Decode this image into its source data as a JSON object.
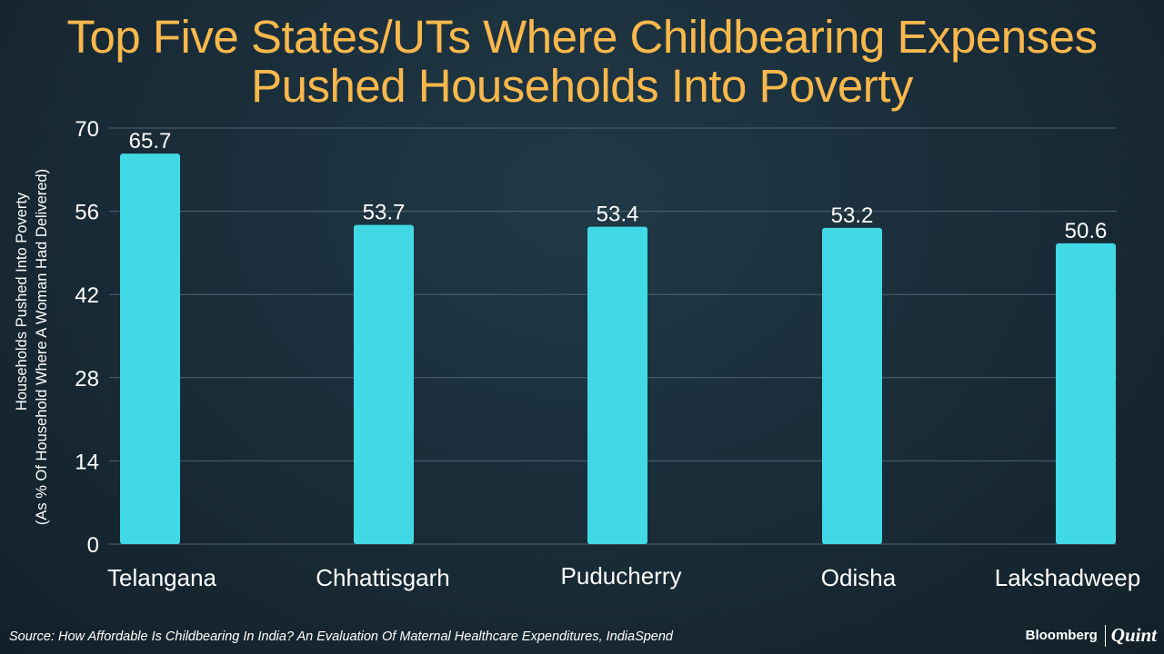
{
  "title_line1": "Top Five States/UTs Where Childbearing Expenses",
  "title_line2": "Pushed Households Into Poverty",
  "chart_data": {
    "type": "bar",
    "title": "Top Five States/UTs Where Childbearing Expenses Pushed Households Into Poverty",
    "categories": [
      "Telangana",
      "Chhattisgarh",
      "Puducherry",
      "Odisha",
      "Lakshadweep"
    ],
    "values": [
      65.7,
      53.7,
      53.4,
      53.2,
      50.6
    ],
    "value_labels": [
      "65.7",
      "53.7",
      "53.4",
      "53.2",
      "50.6"
    ],
    "yticks": [
      0,
      14,
      28,
      42,
      56,
      70
    ],
    "ylim": [
      0,
      70
    ],
    "xlabel": "",
    "ylabel_line1": "Households Pushed Into Poverty",
    "ylabel_line2": "(As % Of Household Where A Woman Had Delivered)",
    "grid": true,
    "bar_color": "#42d9e6"
  },
  "source": "Source: How Affordable Is Childbearing In India? An Evaluation Of Maternal Healthcare Expenditures, IndiaSpend",
  "brand": {
    "primary": "Bloomberg",
    "secondary": "Quint"
  },
  "colors": {
    "title": "#f9b84c",
    "gridline": "#4e6370",
    "background": "#1a2e3a"
  }
}
